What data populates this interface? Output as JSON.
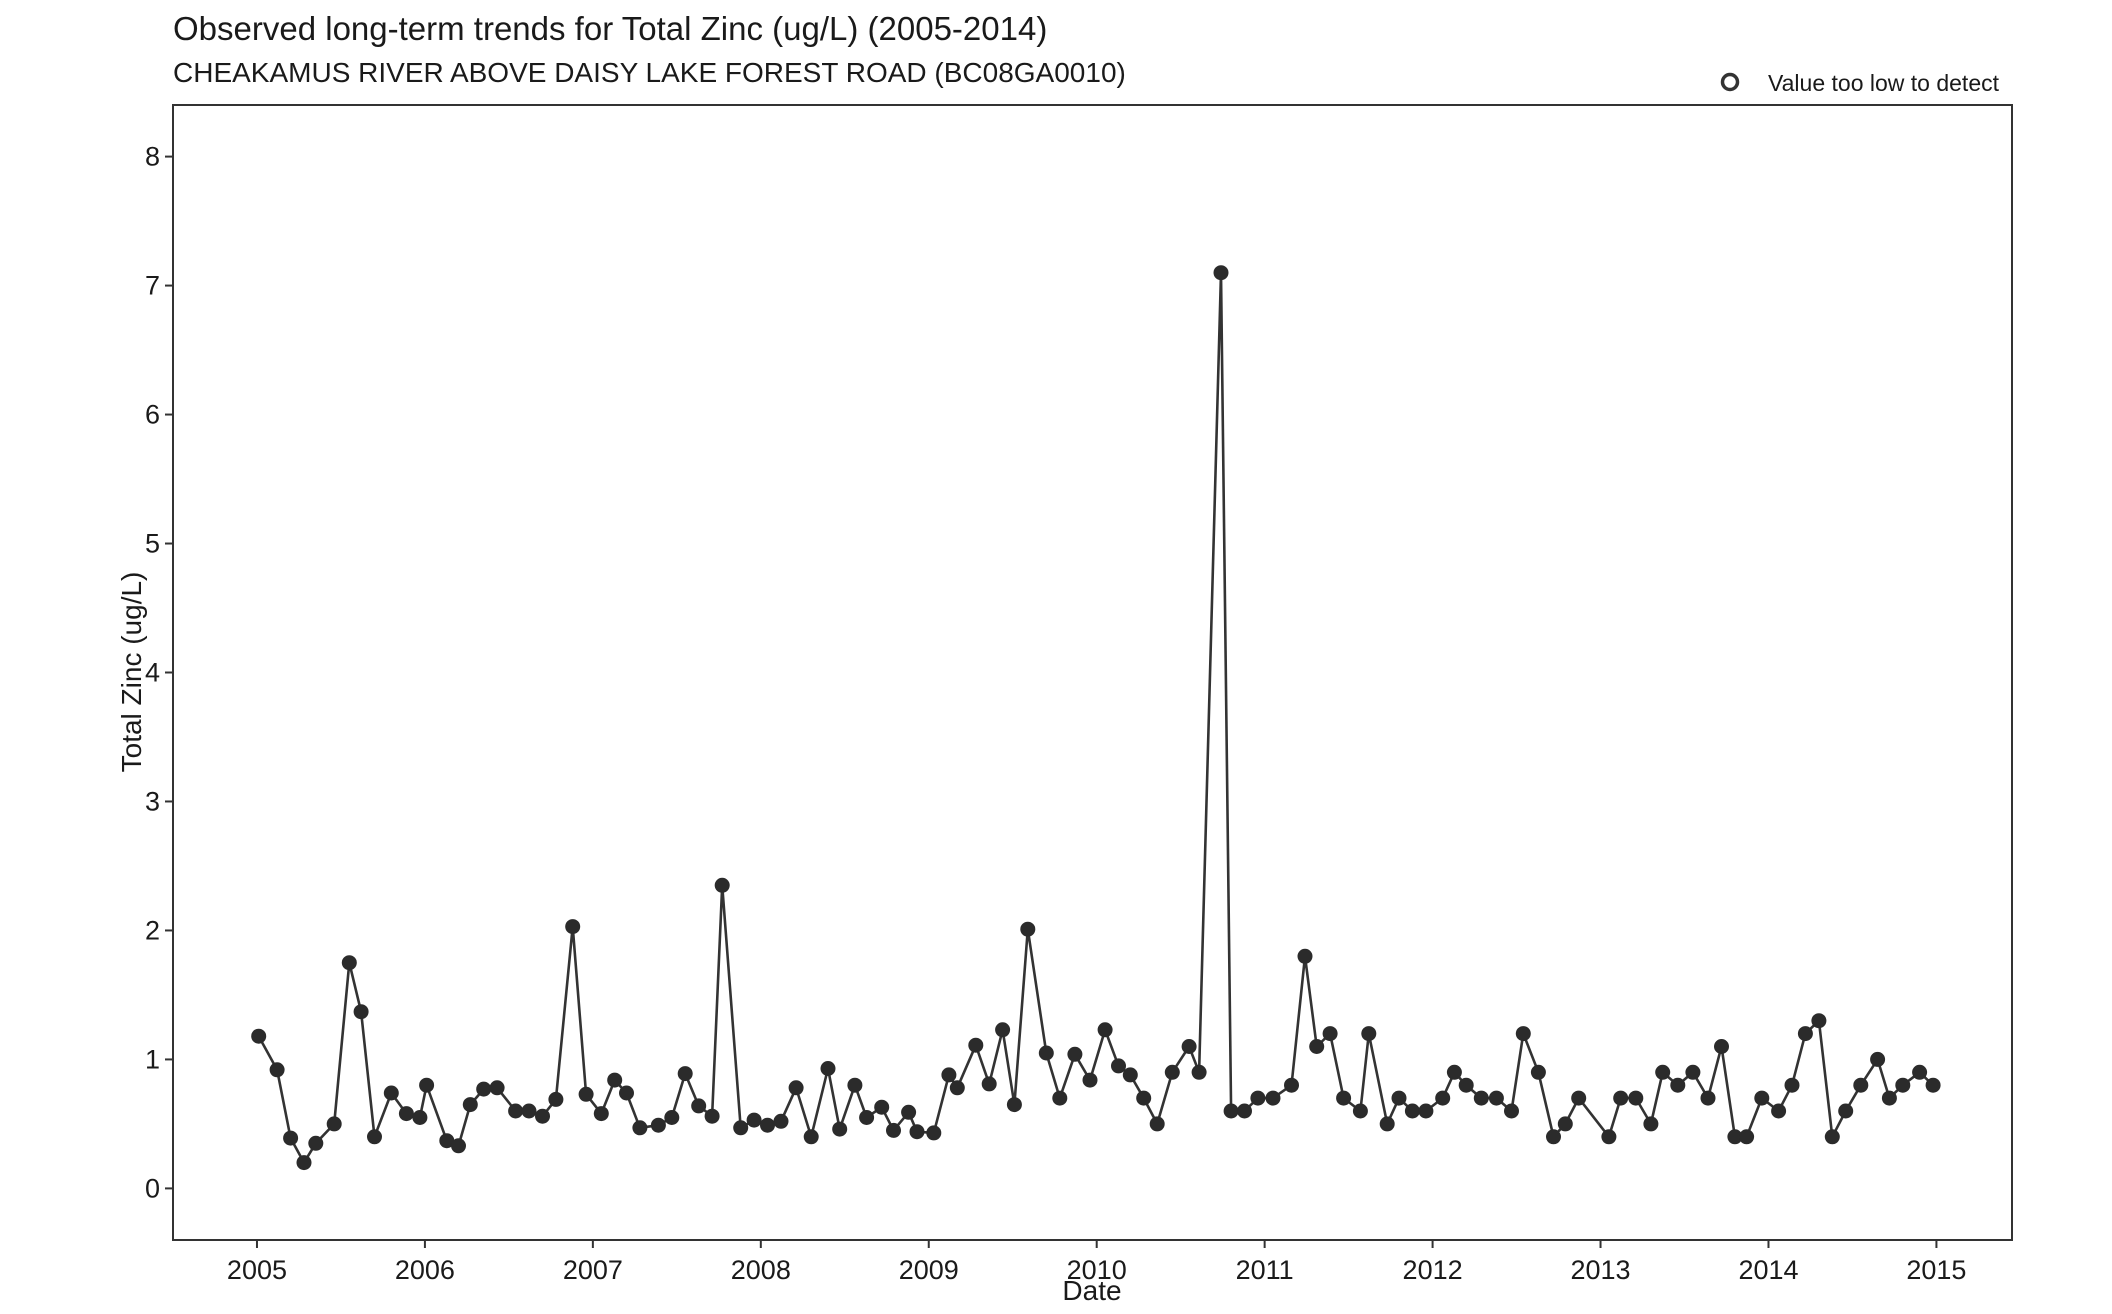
{
  "chart_data": {
    "type": "line",
    "title": "Observed long-term trends for Total Zinc (ug/L) (2005-2014)",
    "subtitle": "CHEAKAMUS RIVER ABOVE DAISY LAKE FOREST ROAD (BC08GA0010)",
    "xlabel": "Date",
    "ylabel": "Total Zinc (ug/L)",
    "xlim": [
      2004.5,
      2015.45
    ],
    "ylim": [
      -0.4,
      8.4
    ],
    "x_ticks": [
      2005,
      2006,
      2007,
      2008,
      2009,
      2010,
      2011,
      2012,
      2013,
      2014,
      2015
    ],
    "y_ticks": [
      0,
      1,
      2,
      3,
      4,
      5,
      6,
      7,
      8
    ],
    "grid": false,
    "legend": {
      "position": "top-right",
      "entries": [
        {
          "label": "Value too low to detect",
          "marker": "open-circle"
        }
      ]
    },
    "colors": {
      "line": "#333333",
      "marker": "#2b2b2b",
      "axis": "#333333",
      "text": "#1a1a1a"
    },
    "series": [
      {
        "name": "",
        "marker": "filled-circle",
        "x": [
          2005.01,
          2005.12,
          2005.2,
          2005.28,
          2005.35,
          2005.46,
          2005.55,
          2005.62,
          2005.7,
          2005.8,
          2005.89,
          2005.97,
          2006.01,
          2006.13,
          2006.2,
          2006.27,
          2006.35,
          2006.43,
          2006.54,
          2006.62,
          2006.7,
          2006.78,
          2006.88,
          2006.96,
          2007.05,
          2007.13,
          2007.2,
          2007.28,
          2007.39,
          2007.47,
          2007.55,
          2007.63,
          2007.71,
          2007.77,
          2007.88,
          2007.96,
          2008.04,
          2008.12,
          2008.21,
          2008.3,
          2008.4,
          2008.47,
          2008.56,
          2008.63,
          2008.72,
          2008.79,
          2008.88,
          2008.93,
          2009.03,
          2009.12,
          2009.17,
          2009.28,
          2009.36,
          2009.44,
          2009.51,
          2009.59,
          2009.7,
          2009.78,
          2009.87,
          2009.96,
          2010.05,
          2010.13,
          2010.2,
          2010.28,
          2010.36,
          2010.45,
          2010.55,
          2010.61,
          2010.74,
          2010.8,
          2010.88,
          2010.96,
          2011.05,
          2011.16,
          2011.24,
          2011.31,
          2011.39,
          2011.47,
          2011.57,
          2011.62,
          2011.73,
          2011.8,
          2011.88,
          2011.96,
          2012.06,
          2012.13,
          2012.2,
          2012.29,
          2012.38,
          2012.47,
          2012.54,
          2012.63,
          2012.72,
          2012.79,
          2012.87,
          2013.05,
          2013.12,
          2013.21,
          2013.3,
          2013.37,
          2013.46,
          2013.55,
          2013.64,
          2013.72,
          2013.8,
          2013.87,
          2013.96,
          2014.06,
          2014.14,
          2014.22,
          2014.3,
          2014.38,
          2014.46,
          2014.55,
          2014.65,
          2014.72,
          2014.8,
          2014.9,
          2014.98
        ],
        "y": [
          1.18,
          0.92,
          0.39,
          0.2,
          0.35,
          0.5,
          1.75,
          1.37,
          0.4,
          0.74,
          0.58,
          0.55,
          0.8,
          0.37,
          0.33,
          0.65,
          0.77,
          0.78,
          0.6,
          0.6,
          0.56,
          0.69,
          2.03,
          0.73,
          0.58,
          0.84,
          0.74,
          0.47,
          0.49,
          0.55,
          0.89,
          0.64,
          0.56,
          2.35,
          0.47,
          0.53,
          0.49,
          0.52,
          0.78,
          0.4,
          0.93,
          0.46,
          0.8,
          0.55,
          0.63,
          0.45,
          0.59,
          0.44,
          0.43,
          0.88,
          0.78,
          1.11,
          0.81,
          1.23,
          0.65,
          2.01,
          1.05,
          0.7,
          1.04,
          0.84,
          1.23,
          0.95,
          0.88,
          0.7,
          0.5,
          0.9,
          1.1,
          0.9,
          7.1,
          0.6,
          0.6,
          0.7,
          0.7,
          0.8,
          1.8,
          1.1,
          1.2,
          0.7,
          0.6,
          1.2,
          0.5,
          0.7,
          0.6,
          0.6,
          0.7,
          0.9,
          0.8,
          0.7,
          0.7,
          0.6,
          1.2,
          0.9,
          0.4,
          0.5,
          0.7,
          0.4,
          0.7,
          0.7,
          0.5,
          0.9,
          0.8,
          0.9,
          0.7,
          1.1,
          0.4,
          0.4,
          0.7,
          0.6,
          0.8,
          1.2,
          1.3,
          0.4,
          0.6,
          0.8,
          1.0,
          0.7,
          0.8,
          0.9,
          0.8
        ]
      }
    ]
  }
}
